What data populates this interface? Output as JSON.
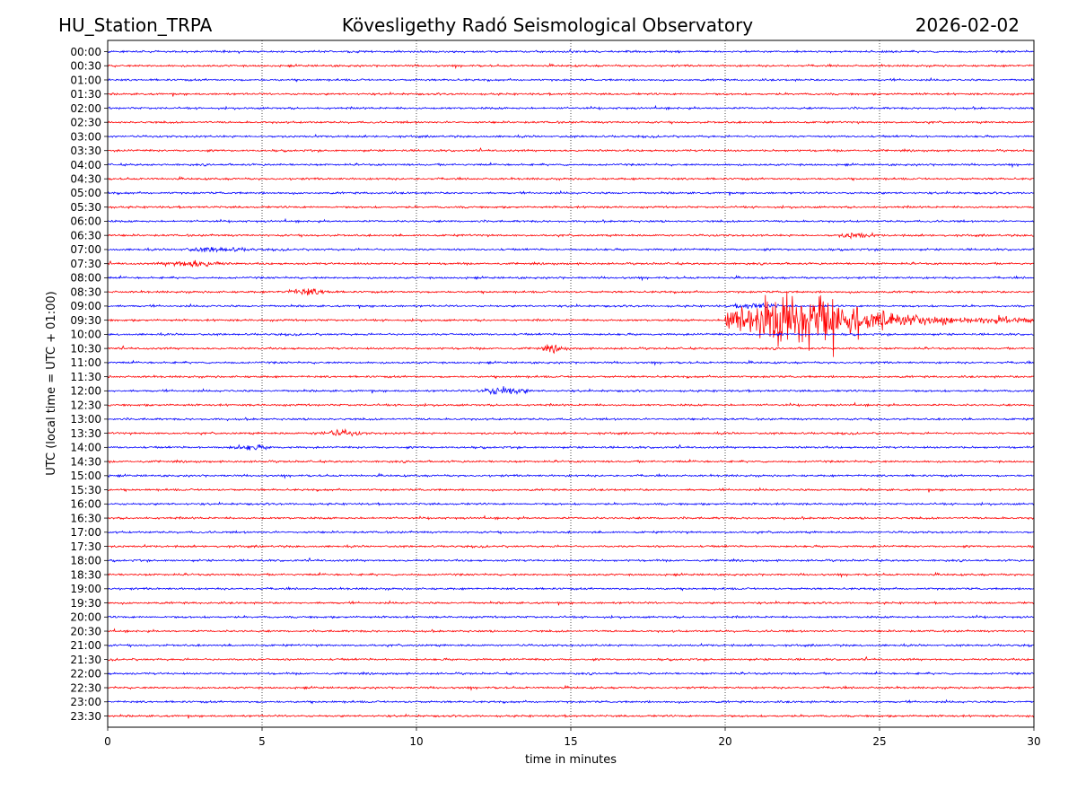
{
  "header": {
    "station": "HU_Station_TRPA",
    "observatory": "Kövesligethy Radó Seismological Observatory",
    "date": "2026-02-02"
  },
  "chart_data": {
    "type": "line",
    "title": "Kövesligethy Radó Seismological Observatory",
    "xlabel": "time in minutes",
    "ylabel": "UTC (local time = UTC + 01:00)",
    "xlim": [
      0,
      30
    ],
    "x_ticks": [
      0,
      5,
      10,
      15,
      20,
      25,
      30
    ],
    "x_tick_labels": [
      "0",
      "5",
      "10",
      "15",
      "20",
      "25",
      "30"
    ],
    "vertical_gridlines_at": [
      5,
      10,
      15,
      20,
      25
    ],
    "grid": "vertical dotted",
    "row_labels": [
      "00:00",
      "00:30",
      "01:00",
      "01:30",
      "02:00",
      "02:30",
      "03:00",
      "03:30",
      "04:00",
      "04:30",
      "05:00",
      "05:30",
      "06:00",
      "06:30",
      "07:00",
      "07:30",
      "08:00",
      "08:30",
      "09:00",
      "09:30",
      "10:00",
      "10:30",
      "11:00",
      "11:30",
      "12:00",
      "12:30",
      "13:00",
      "13:30",
      "14:00",
      "14:30",
      "15:00",
      "15:30",
      "16:00",
      "16:30",
      "17:00",
      "17:30",
      "18:00",
      "18:30",
      "19:00",
      "19:30",
      "20:00",
      "20:30",
      "21:00",
      "21:30",
      "22:00",
      "22:30",
      "23:00",
      "23:30"
    ],
    "trace_colors": [
      "#0000ff",
      "#ff0000"
    ],
    "noise_amplitude_rows": 0.12,
    "events": [
      {
        "row": "06:30",
        "start_min": 23.5,
        "end_min": 25.0,
        "amplitude_rows": 0.25
      },
      {
        "row": "07:00",
        "start_min": 2.0,
        "end_min": 5.0,
        "amplitude_rows": 0.2
      },
      {
        "row": "07:30",
        "start_min": 1.5,
        "end_min": 4.0,
        "amplitude_rows": 0.35
      },
      {
        "row": "08:30",
        "start_min": 5.5,
        "end_min": 7.5,
        "amplitude_rows": 0.3
      },
      {
        "row": "09:00",
        "start_min": 20.0,
        "end_min": 22.0,
        "amplitude_rows": 0.25
      },
      {
        "row": "10:30",
        "start_min": 13.8,
        "end_min": 15.0,
        "amplitude_rows": 0.3
      },
      {
        "row": "12:00",
        "start_min": 11.8,
        "end_min": 13.8,
        "amplitude_rows": 0.45
      },
      {
        "row": "13:30",
        "start_min": 6.5,
        "end_min": 8.5,
        "amplitude_rows": 0.25
      },
      {
        "row": "14:00",
        "start_min": 3.8,
        "end_min": 5.5,
        "amplitude_rows": 0.22
      }
    ],
    "earthquake": {
      "row": "09:30",
      "onset_min": 20.0,
      "peak_min": 23.0,
      "coda_end_min": 30.0,
      "peak_amplitude_rows": 4.5
    }
  }
}
